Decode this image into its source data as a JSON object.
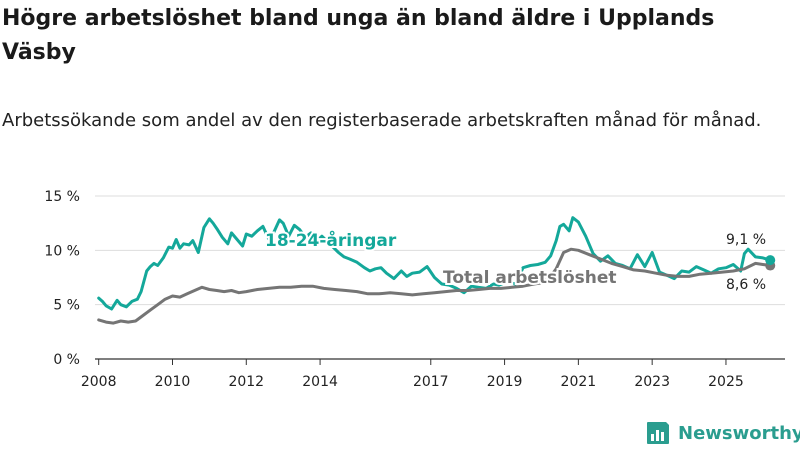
{
  "header": {
    "title": "Högre arbetslöshet bland unga än bland äldre i Upplands Väsby",
    "subtitle": "Arbetssökande som andel av den registerbaserade arbetskraften månad för månad."
  },
  "brand": {
    "name": "Newsworthy"
  },
  "colors": {
    "youth": "#14a89a",
    "total": "#757575",
    "grid": "#dddddd",
    "axis": "#333333"
  },
  "chart_data": {
    "type": "line",
    "title": "Högre arbetslöshet bland unga än bland äldre i Upplands Väsby",
    "subtitle": "Arbetssökande som andel av den registerbaserade arbetskraften månad för månad.",
    "xlabel": "",
    "ylabel": "",
    "xlim": [
      2007.9,
      2026.6
    ],
    "ylim": [
      0,
      15
    ],
    "y_ticks": [
      0,
      5,
      10,
      15
    ],
    "y_tick_labels": [
      "0 %",
      "5 %",
      "10 %",
      "15 %"
    ],
    "x_ticks": [
      2008,
      2010,
      2012,
      2014,
      2017,
      2019,
      2021,
      2023,
      2025
    ],
    "x_tick_labels": [
      "2008",
      "2010",
      "2012",
      "2014",
      "2017",
      "2019",
      "2021",
      "2023",
      "2025"
    ],
    "grid": true,
    "series": [
      {
        "name": "18-24-åringar",
        "label": "18-24-åringar",
        "end_label": "9,1 %",
        "x": [
          2008.0,
          2008.1,
          2008.2,
          2008.35,
          2008.5,
          2008.6,
          2008.75,
          2008.9,
          2009.05,
          2009.15,
          2009.3,
          2009.4,
          2009.5,
          2009.6,
          2009.75,
          2009.9,
          2010.0,
          2010.1,
          2010.2,
          2010.3,
          2010.45,
          2010.55,
          2010.7,
          2010.85,
          2011.0,
          2011.1,
          2011.2,
          2011.35,
          2011.5,
          2011.6,
          2011.75,
          2011.9,
          2012.0,
          2012.15,
          2012.3,
          2012.45,
          2012.6,
          2012.75,
          2012.9,
          2013.0,
          2013.15,
          2013.3,
          2013.45,
          2013.6,
          2013.75,
          2013.9,
          2014.05,
          2014.2,
          2014.35,
          2014.5,
          2014.65,
          2014.8,
          2015.0,
          2015.2,
          2015.35,
          2015.5,
          2015.65,
          2015.8,
          2016.0,
          2016.2,
          2016.35,
          2016.5,
          2016.7,
          2016.9,
          2017.1,
          2017.3,
          2017.5,
          2017.7,
          2017.9,
          2018.1,
          2018.3,
          2018.5,
          2018.7,
          2018.85,
          2019.0,
          2019.15,
          2019.3,
          2019.5,
          2019.7,
          2019.9,
          2020.1,
          2020.25,
          2020.4,
          2020.5,
          2020.6,
          2020.75,
          2020.85,
          2021.0,
          2021.2,
          2021.4,
          2021.6,
          2021.8,
          2022.0,
          2022.2,
          2022.4,
          2022.6,
          2022.8,
          2023.0,
          2023.2,
          2023.4,
          2023.6,
          2023.8,
          2024.0,
          2024.2,
          2024.4,
          2024.6,
          2024.8,
          2025.0,
          2025.2,
          2025.4,
          2025.5,
          2025.6,
          2025.8,
          2026.0,
          2026.2
        ],
        "values": [
          5.6,
          5.3,
          4.9,
          4.6,
          5.4,
          5.0,
          4.8,
          5.3,
          5.5,
          6.2,
          8.1,
          8.5,
          8.8,
          8.6,
          9.3,
          10.3,
          10.2,
          11.0,
          10.2,
          10.6,
          10.5,
          10.9,
          9.8,
          12.1,
          12.9,
          12.5,
          12.0,
          11.2,
          10.6,
          11.6,
          11.0,
          10.4,
          11.5,
          11.3,
          11.8,
          12.2,
          11.1,
          11.7,
          12.8,
          12.5,
          11.3,
          12.3,
          11.9,
          11.2,
          11.6,
          10.8,
          11.3,
          10.8,
          10.3,
          9.8,
          9.4,
          9.2,
          8.9,
          8.4,
          8.1,
          8.3,
          8.4,
          7.9,
          7.4,
          8.1,
          7.6,
          7.9,
          8.0,
          8.5,
          7.5,
          6.9,
          6.8,
          6.5,
          6.1,
          6.7,
          6.6,
          6.5,
          6.9,
          6.8,
          7.0,
          7.0,
          6.9,
          8.4,
          8.6,
          8.7,
          8.9,
          9.5,
          10.9,
          12.2,
          12.4,
          11.8,
          13.0,
          12.6,
          11.3,
          9.7,
          9.0,
          9.5,
          8.8,
          8.6,
          8.3,
          9.6,
          8.5,
          9.8,
          8.0,
          7.7,
          7.4,
          8.1,
          8.0,
          8.5,
          8.2,
          7.9,
          8.3,
          8.4,
          8.7,
          8.1,
          9.7,
          10.1,
          9.4,
          9.3,
          9.1
        ]
      },
      {
        "name": "Total arbetslöshet",
        "label": "Total arbetslöshet",
        "end_label": "8,6 %",
        "x": [
          2008.0,
          2008.2,
          2008.4,
          2008.6,
          2008.8,
          2009.0,
          2009.2,
          2009.4,
          2009.6,
          2009.8,
          2010.0,
          2010.2,
          2010.4,
          2010.6,
          2010.8,
          2011.0,
          2011.2,
          2011.4,
          2011.6,
          2011.8,
          2012.0,
          2012.3,
          2012.6,
          2012.9,
          2013.2,
          2013.5,
          2013.8,
          2014.1,
          2014.4,
          2014.7,
          2015.0,
          2015.3,
          2015.6,
          2015.9,
          2016.2,
          2016.5,
          2016.8,
          2017.1,
          2017.4,
          2017.7,
          2018.0,
          2018.3,
          2018.6,
          2018.9,
          2019.2,
          2019.5,
          2019.8,
          2020.0,
          2020.2,
          2020.4,
          2020.6,
          2020.8,
          2021.0,
          2021.3,
          2021.6,
          2021.9,
          2022.2,
          2022.5,
          2022.8,
          2023.1,
          2023.4,
          2023.7,
          2024.0,
          2024.3,
          2024.6,
          2024.9,
          2025.2,
          2025.5,
          2025.8,
          2026.0,
          2026.2
        ],
        "values": [
          3.6,
          3.4,
          3.3,
          3.5,
          3.4,
          3.5,
          4.0,
          4.5,
          5.0,
          5.5,
          5.8,
          5.7,
          6.0,
          6.3,
          6.6,
          6.4,
          6.3,
          6.2,
          6.3,
          6.1,
          6.2,
          6.4,
          6.5,
          6.6,
          6.6,
          6.7,
          6.7,
          6.5,
          6.4,
          6.3,
          6.2,
          6.0,
          6.0,
          6.1,
          6.0,
          5.9,
          6.0,
          6.1,
          6.2,
          6.3,
          6.3,
          6.4,
          6.5,
          6.5,
          6.6,
          6.7,
          6.9,
          7.0,
          7.4,
          8.3,
          9.8,
          10.1,
          10.0,
          9.6,
          9.2,
          8.8,
          8.5,
          8.2,
          8.1,
          7.9,
          7.7,
          7.6,
          7.6,
          7.8,
          7.9,
          8.0,
          8.1,
          8.3,
          8.8,
          8.7,
          8.6
        ]
      }
    ]
  }
}
